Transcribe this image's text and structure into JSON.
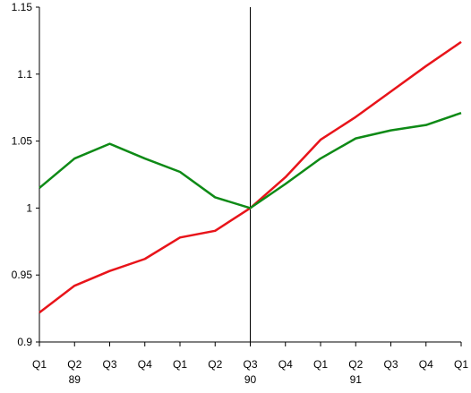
{
  "chart_data": {
    "type": "line",
    "title": "",
    "xlabel": "",
    "ylabel": "",
    "categories": [
      "Q1",
      "Q2",
      "Q3",
      "Q4",
      "Q1",
      "Q2",
      "Q3",
      "Q4",
      "Q1",
      "Q2",
      "Q3",
      "Q4",
      "Q1"
    ],
    "year_labels": [
      {
        "index": 1,
        "label": "89"
      },
      {
        "index": 6,
        "label": "90"
      },
      {
        "index": 9,
        "label": "91"
      }
    ],
    "y_ticks": [
      "0.9",
      "0.95",
      "1",
      "1.05",
      "1.1",
      "1.15"
    ],
    "ylim": [
      0.9,
      1.15
    ],
    "grid": false,
    "reference_line_index": 6,
    "series": [
      {
        "color": "#e8141a",
        "values": [
          0.922,
          0.942,
          0.953,
          0.962,
          0.978,
          0.983,
          1.0,
          1.023,
          1.051,
          1.068,
          1.087,
          1.106,
          1.124
        ]
      },
      {
        "color": "#0e8a16",
        "values": [
          1.015,
          1.037,
          1.048,
          1.037,
          1.027,
          1.008,
          1.0,
          1.018,
          1.037,
          1.052,
          1.058,
          1.062,
          1.071
        ]
      }
    ]
  }
}
